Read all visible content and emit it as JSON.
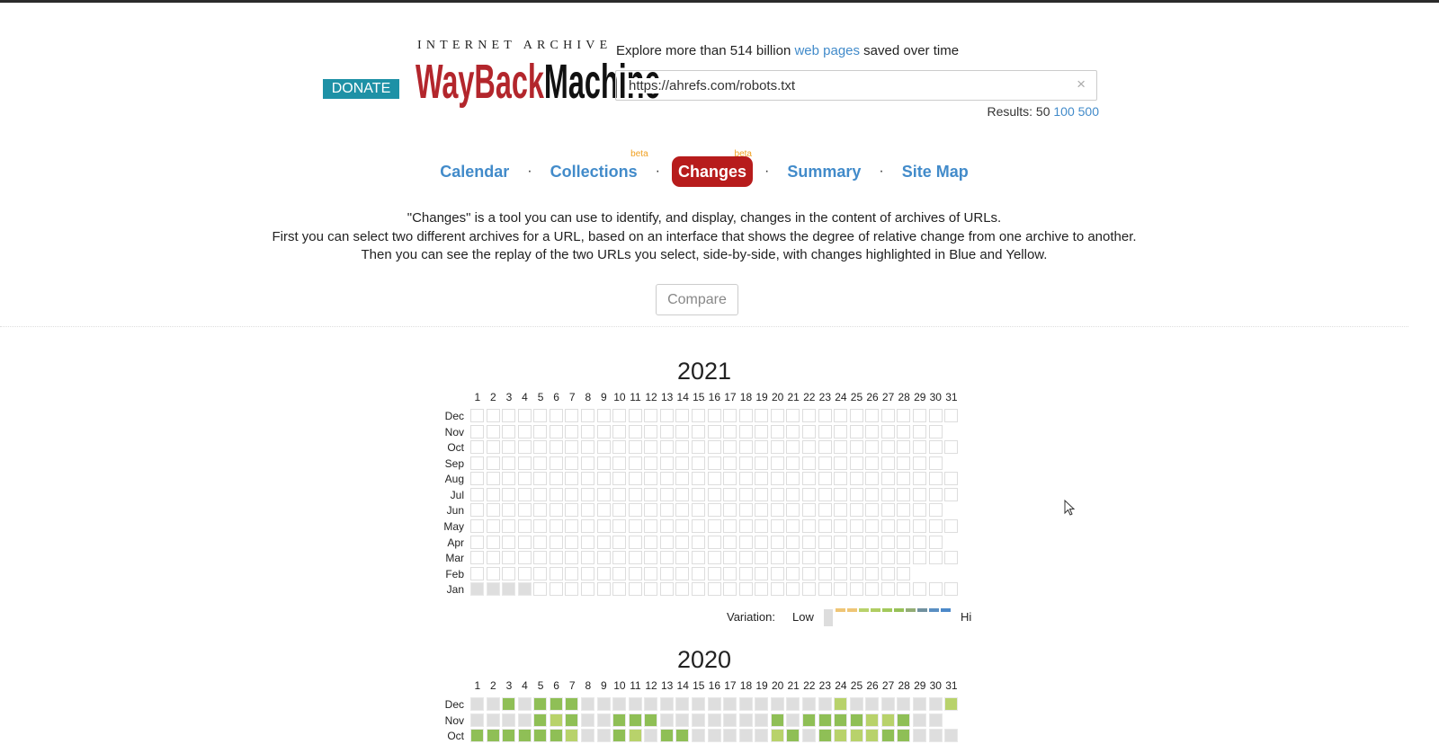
{
  "header": {
    "donate_label": "DONATE",
    "logo_top": "INTERNET ARCHIVE",
    "logo_word1": "WayBack",
    "logo_word2": "Machine",
    "explore_prefix": "Explore more than 514 billion ",
    "explore_link": "web pages",
    "explore_suffix": " saved over time",
    "search_value": "https://ahrefs.com/robots.txt",
    "clear_icon": "×",
    "results_label": "Results: 50",
    "results_options": [
      "100",
      "500"
    ]
  },
  "nav": {
    "items": [
      {
        "label": "Calendar",
        "beta": ""
      },
      {
        "label": "Collections",
        "beta": "beta"
      },
      {
        "label": "Changes",
        "beta": "beta",
        "active": true
      },
      {
        "label": "Summary",
        "beta": ""
      },
      {
        "label": "Site Map",
        "beta": ""
      }
    ],
    "separator": "·"
  },
  "description": {
    "line1": "\"Changes\" is a tool you can use to identify, and display, changes in the content of archives of URLs.",
    "line2": "First you can select two different archives for a URL, based on an interface that shows the degree of relative change from one archive to another.",
    "line3": "Then you can see the replay of the two URLs you select, side-by-side, with changes highlighted in Blue and Yellow."
  },
  "compare_label": "Compare",
  "legend": {
    "label": "Variation:",
    "low": "Low",
    "hi": "Hi",
    "base_color": "#dddddd",
    "colors": [
      "#efc576",
      "#efc576",
      "#b8d26b",
      "#b0cd62",
      "#a3c95c",
      "#97c158",
      "#93ad76",
      "#71919f",
      "#5a8fc2",
      "#4c89c9"
    ]
  },
  "cell_colors": {
    "0": "#ffffff",
    "1": "#dedede",
    "2": "#8fbf56",
    "3": "#b8d26b"
  },
  "days": [
    "1",
    "2",
    "3",
    "4",
    "5",
    "6",
    "7",
    "8",
    "9",
    "10",
    "11",
    "12",
    "13",
    "14",
    "15",
    "16",
    "17",
    "18",
    "19",
    "20",
    "21",
    "22",
    "23",
    "24",
    "25",
    "26",
    "27",
    "28",
    "29",
    "30",
    "31"
  ],
  "years": [
    {
      "year": "2021",
      "months": [
        {
          "label": "Dec",
          "levels": "0000000000000000000000000000000"
        },
        {
          "label": "Nov",
          "levels": "000000000000000000000000000000"
        },
        {
          "label": "Oct",
          "levels": "0000000000000000000000000000000"
        },
        {
          "label": "Sep",
          "levels": "000000000000000000000000000000"
        },
        {
          "label": "Aug",
          "levels": "0000000000000000000000000000000"
        },
        {
          "label": "Jul",
          "levels": "0000000000000000000000000000000"
        },
        {
          "label": "Jun",
          "levels": "000000000000000000000000000000"
        },
        {
          "label": "May",
          "levels": "0000000000000000000000000000000"
        },
        {
          "label": "Apr",
          "levels": "000000000000000000000000000000"
        },
        {
          "label": "Mar",
          "levels": "0000000000000000000000000000000"
        },
        {
          "label": "Feb",
          "levels": "0000000000000000000000000000"
        },
        {
          "label": "Jan",
          "levels": "1111000000000000000000000000000"
        }
      ]
    },
    {
      "year": "2020",
      "months": [
        {
          "label": "Dec",
          "levels": "1121222111111111111111131111113"
        },
        {
          "label": "Nov",
          "levels": "111123211222111111121222233211"
        },
        {
          "label": "Oct",
          "levels": "2222223112312211111321233322111"
        }
      ]
    }
  ]
}
